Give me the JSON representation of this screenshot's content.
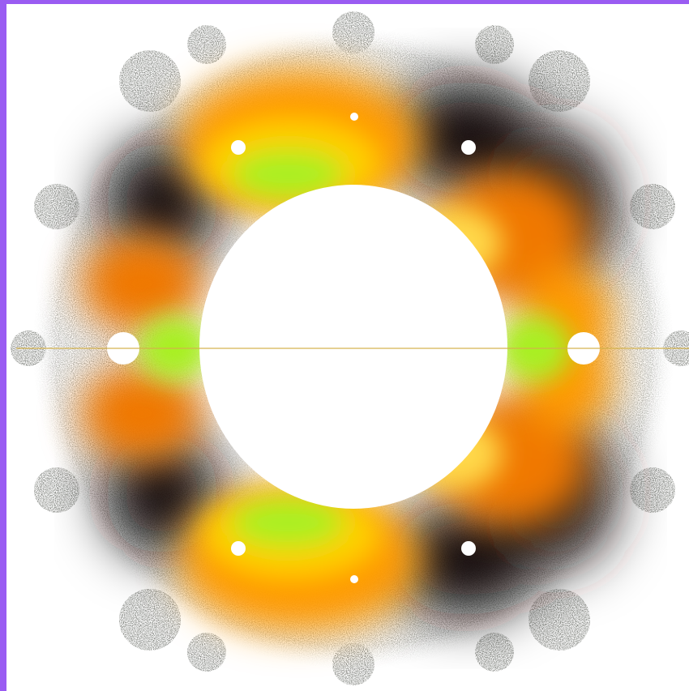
{
  "image": {
    "subject": "fractal-ring",
    "colors": {
      "frame": "#9a5cf2",
      "background": "#ffffff",
      "gray_fringe": "#8a8c88",
      "gray_dark": "#5f625d",
      "black_band": "#141010",
      "orange": "#ff9a00",
      "orange_deep": "#f07800",
      "yellow": "#ffcf00",
      "green": "#a8f020",
      "center": "#ffffff"
    }
  }
}
